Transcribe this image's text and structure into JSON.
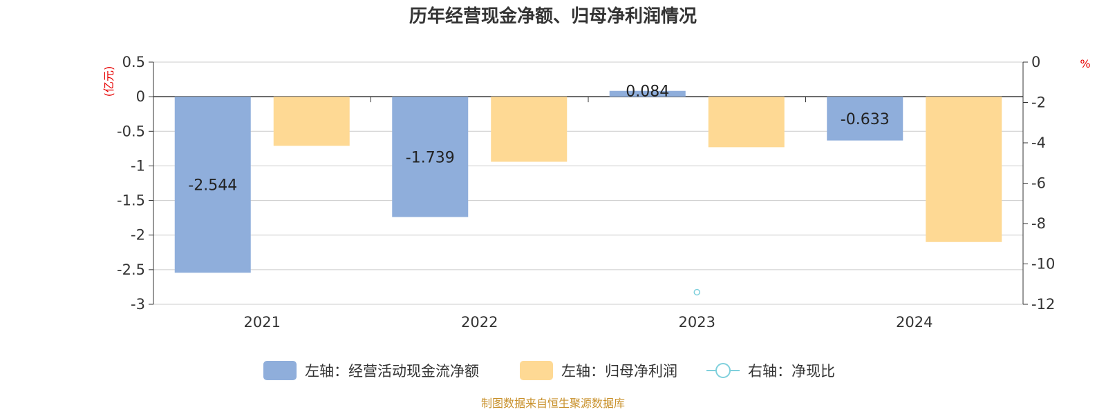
{
  "chart_data": {
    "type": "bar",
    "title": "历年经营现金净额、归母净利润情况",
    "categories": [
      "2021",
      "2022",
      "2023",
      "2024"
    ],
    "left_axis": {
      "unit": "(亿元)",
      "ylim": [
        -3,
        0.5
      ],
      "ticks": [
        0.5,
        0,
        -0.5,
        -1,
        -1.5,
        -2,
        -2.5,
        -3
      ],
      "tick_labels": [
        "0.5",
        "0",
        "-0.5",
        "-1",
        "-1.5",
        "-2",
        "-2.5",
        "-3"
      ]
    },
    "right_axis": {
      "unit": "%",
      "ylim": [
        -12,
        0
      ],
      "ticks": [
        0,
        -2,
        -4,
        -6,
        -8,
        -10,
        -12
      ],
      "tick_labels": [
        "0",
        "-2",
        "-4",
        "-6",
        "-8",
        "-10",
        "-12"
      ]
    },
    "series": [
      {
        "name": "左轴：经营活动现金流净额",
        "type": "bar",
        "axis": "left",
        "color": "#8faedb",
        "values": [
          -2.544,
          -1.739,
          0.084,
          -0.633
        ],
        "labels": [
          "-2.544",
          "-1.739",
          "0.084",
          "-0.633"
        ]
      },
      {
        "name": "左轴：归母净利润",
        "type": "bar",
        "axis": "left",
        "color": "#fed994",
        "values": [
          -0.71,
          -0.94,
          -0.73,
          -2.1
        ]
      },
      {
        "name": "右轴：净现比",
        "type": "line",
        "axis": "right",
        "color": "#7fd0dc",
        "values": [
          null,
          null,
          -11.4,
          null
        ]
      }
    ],
    "grid": true,
    "legend_position": "bottom",
    "source": "制图数据来自恒生聚源数据库"
  }
}
